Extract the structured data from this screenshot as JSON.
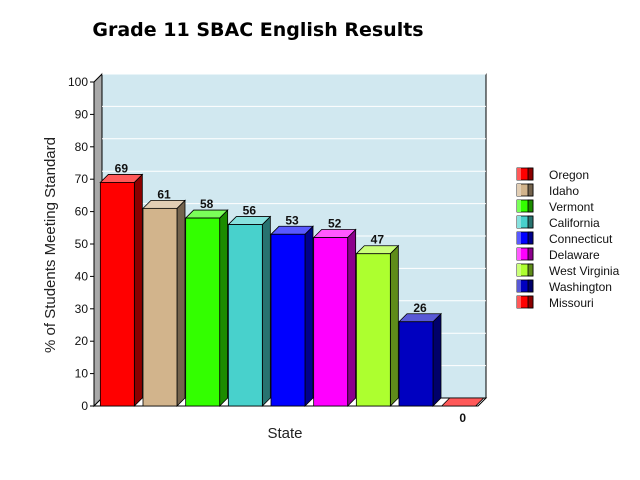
{
  "chart_data": {
    "type": "bar",
    "title": "Grade 11 SBAC English Results",
    "xlabel": "State",
    "ylabel": "% of Students Meeting Standard",
    "ylim": [
      0,
      100
    ],
    "yticks": [
      0,
      10,
      20,
      30,
      40,
      50,
      60,
      70,
      80,
      90,
      100
    ],
    "grid": true,
    "legend_position": "right",
    "series": [
      {
        "name": "Oregon",
        "value": 69,
        "color": "#ff0000"
      },
      {
        "name": "Idaho",
        "value": 61,
        "color": "#d2b48c"
      },
      {
        "name": "Vermont",
        "value": 58,
        "color": "#33ff00"
      },
      {
        "name": "California",
        "value": 56,
        "color": "#48d1cc"
      },
      {
        "name": "Connecticut",
        "value": 53,
        "color": "#0000ff"
      },
      {
        "name": "Delaware",
        "value": 52,
        "color": "#ff00ff"
      },
      {
        "name": "West Virginia",
        "value": 47,
        "color": "#adff2f"
      },
      {
        "name": "Washington",
        "value": 26,
        "color": "#0000c0"
      },
      {
        "name": "Missouri",
        "value": 0,
        "color": "#ff0000"
      }
    ],
    "plot_background": "#d1e8f0"
  }
}
